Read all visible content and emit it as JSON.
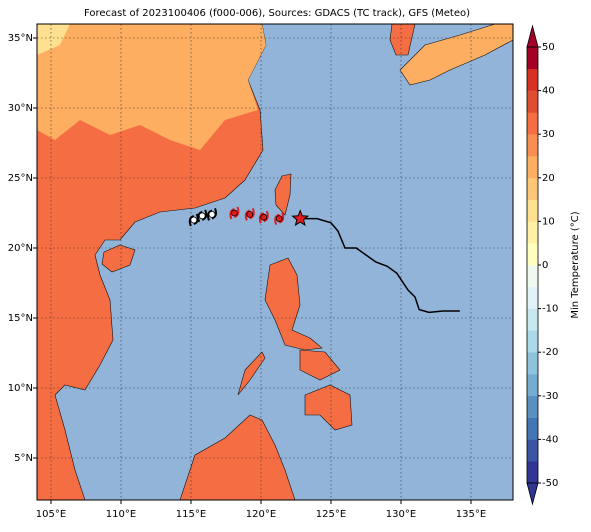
{
  "title": "Forecast of 2023100406 (f000-006), Sources: GDACS (TC track), GFS (Meteo)",
  "map": {
    "type": "map",
    "xlim": [
      104,
      138
    ],
    "ylim": [
      2,
      36
    ],
    "xticks": [
      {
        "value": 105,
        "label": "105°E"
      },
      {
        "value": 110,
        "label": "110°E"
      },
      {
        "value": 115,
        "label": "115°E"
      },
      {
        "value": 120,
        "label": "120°E"
      },
      {
        "value": 125,
        "label": "125°E"
      },
      {
        "value": 130,
        "label": "130°E"
      },
      {
        "value": 135,
        "label": "135°E"
      }
    ],
    "yticks": [
      {
        "value": 5,
        "label": "5°N"
      },
      {
        "value": 10,
        "label": "10°N"
      },
      {
        "value": 15,
        "label": "15°N"
      },
      {
        "value": 20,
        "label": "20°N"
      },
      {
        "value": 25,
        "label": "25°N"
      },
      {
        "value": 30,
        "label": "30°N"
      },
      {
        "value": 35,
        "label": "35°N"
      }
    ],
    "grid": true,
    "track": {
      "color": "#000000",
      "x": [
        122.8,
        124,
        125,
        125.5,
        126,
        126.8,
        127.5,
        128.2,
        129,
        129.7,
        130.5,
        131,
        131.3,
        132,
        133,
        134.2
      ],
      "y": [
        22.1,
        22.1,
        21.8,
        21.2,
        20,
        20,
        19.5,
        19,
        18.7,
        18.2,
        17,
        16.5,
        15.6,
        15.4,
        15.5,
        15.5
      ]
    },
    "current_position": {
      "x": 122.8,
      "y": 22.1,
      "color": "#e31a1c"
    },
    "forecast_points": {
      "x": [
        121.3,
        120.2,
        119.2,
        118.1,
        116.5,
        115.8,
        115.2
      ],
      "y": [
        22.1,
        22.2,
        22.4,
        22.5,
        22.4,
        22.3,
        22.0
      ],
      "colors": [
        "#e31a1c",
        "#e31a1c",
        "#e31a1c",
        "#e31a1c",
        "#ffffff",
        "#ffffff",
        "#ffffff"
      ]
    }
  },
  "colorbar": {
    "label": "Min Temperature (°C)",
    "lim": [
      -50,
      50
    ],
    "ticks": [
      -50,
      -40,
      -30,
      -20,
      -10,
      0,
      10,
      20,
      30,
      40,
      50
    ],
    "colors": [
      "#313695",
      "#3a55a4",
      "#4575b4",
      "#5b8fc2",
      "#74add1",
      "#8fc2dd",
      "#abd9e9",
      "#c6e6f0",
      "#e0f3f8",
      "#f0f9f0",
      "#ffffbf",
      "#fff0a8",
      "#fee090",
      "#fdc576",
      "#fdae61",
      "#f88e52",
      "#f46d43",
      "#e14d33",
      "#d73027",
      "#a50026"
    ]
  }
}
